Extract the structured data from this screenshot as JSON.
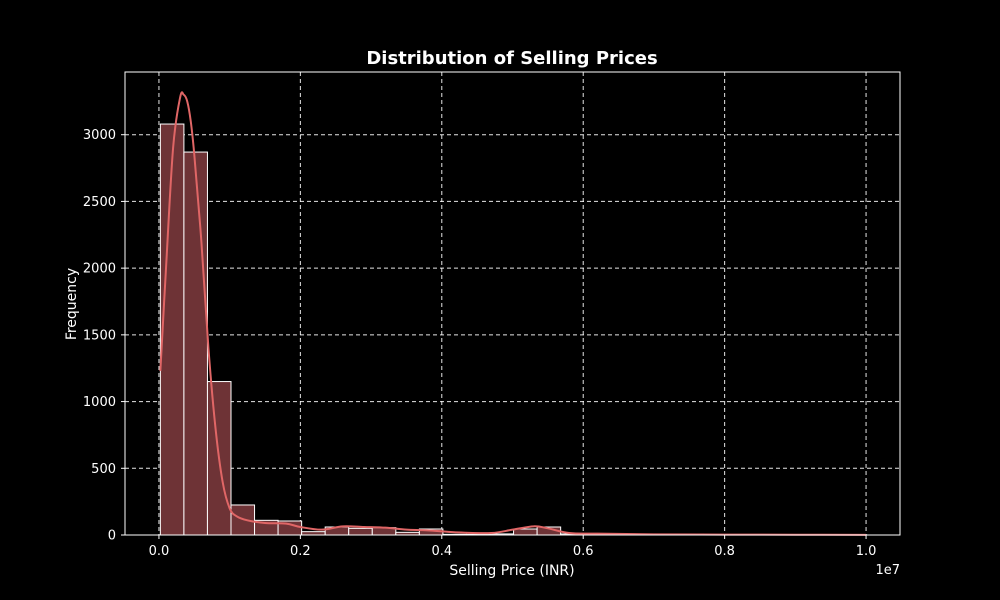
{
  "chart_data": {
    "type": "histogram",
    "title": "Distribution of Selling Prices",
    "xlabel": "Selling Price (INR)",
    "ylabel": "Frequency",
    "x_offset_label": "1e7",
    "x_scale_factor": 10000000,
    "xlim": [
      -480000,
      10480000
    ],
    "ylim": [
      0,
      3470
    ],
    "x_ticks": [
      0,
      2000000,
      4000000,
      6000000,
      8000000,
      10000000
    ],
    "x_tick_labels": [
      "0.0",
      "0.2",
      "0.4",
      "0.6",
      "0.8",
      "1.0"
    ],
    "y_ticks": [
      0,
      500,
      1000,
      1500,
      2000,
      2500,
      3000
    ],
    "y_tick_labels": [
      "0",
      "500",
      "1000",
      "1500",
      "2000",
      "2500",
      "3000"
    ],
    "grid": true,
    "bin_edges": [
      20000,
      353000,
      686000,
      1019000,
      1352000,
      1685000,
      2018000,
      2351000,
      2684000,
      3017000,
      3350000,
      3683000,
      4016000,
      4349000,
      4682000,
      5015000,
      5348000,
      5681000,
      6014000,
      6347000,
      6680000,
      7013000,
      7346000,
      7679000,
      8012000,
      8345000,
      8678000,
      9011000,
      9344000,
      9677000,
      10010000
    ],
    "counts": [
      3080,
      2870,
      1150,
      225,
      110,
      105,
      25,
      60,
      50,
      55,
      20,
      45,
      5,
      5,
      8,
      45,
      60,
      8,
      3,
      2,
      2,
      2,
      1,
      1,
      1,
      1,
      1,
      1,
      1,
      1
    ],
    "kde": {
      "x": [
        20000,
        100000,
        200000,
        300000,
        350000,
        400000,
        450000,
        500000,
        600000,
        700000,
        800000,
        900000,
        1000000,
        1100000,
        1250000,
        1500000,
        1800000,
        2000000,
        2300000,
        2600000,
        2900000,
        3200000,
        3500000,
        3800000,
        4200000,
        4700000,
        5000000,
        5300000,
        5500000,
        5800000,
        6200000,
        7000000,
        8000000,
        9000000,
        10000000
      ],
      "y": [
        1230,
        2000,
        2900,
        3280,
        3300,
        3250,
        3100,
        2850,
        2200,
        1400,
        800,
        400,
        200,
        140,
        110,
        90,
        85,
        60,
        40,
        65,
        60,
        55,
        40,
        35,
        20,
        15,
        40,
        65,
        50,
        15,
        10,
        5,
        3,
        2,
        1
      ]
    },
    "colors": {
      "bar_fill": "#6e3336",
      "bar_edge": "#ffffff",
      "kde_line": "#e06666",
      "background": "#000000",
      "text": "#ffffff"
    }
  }
}
